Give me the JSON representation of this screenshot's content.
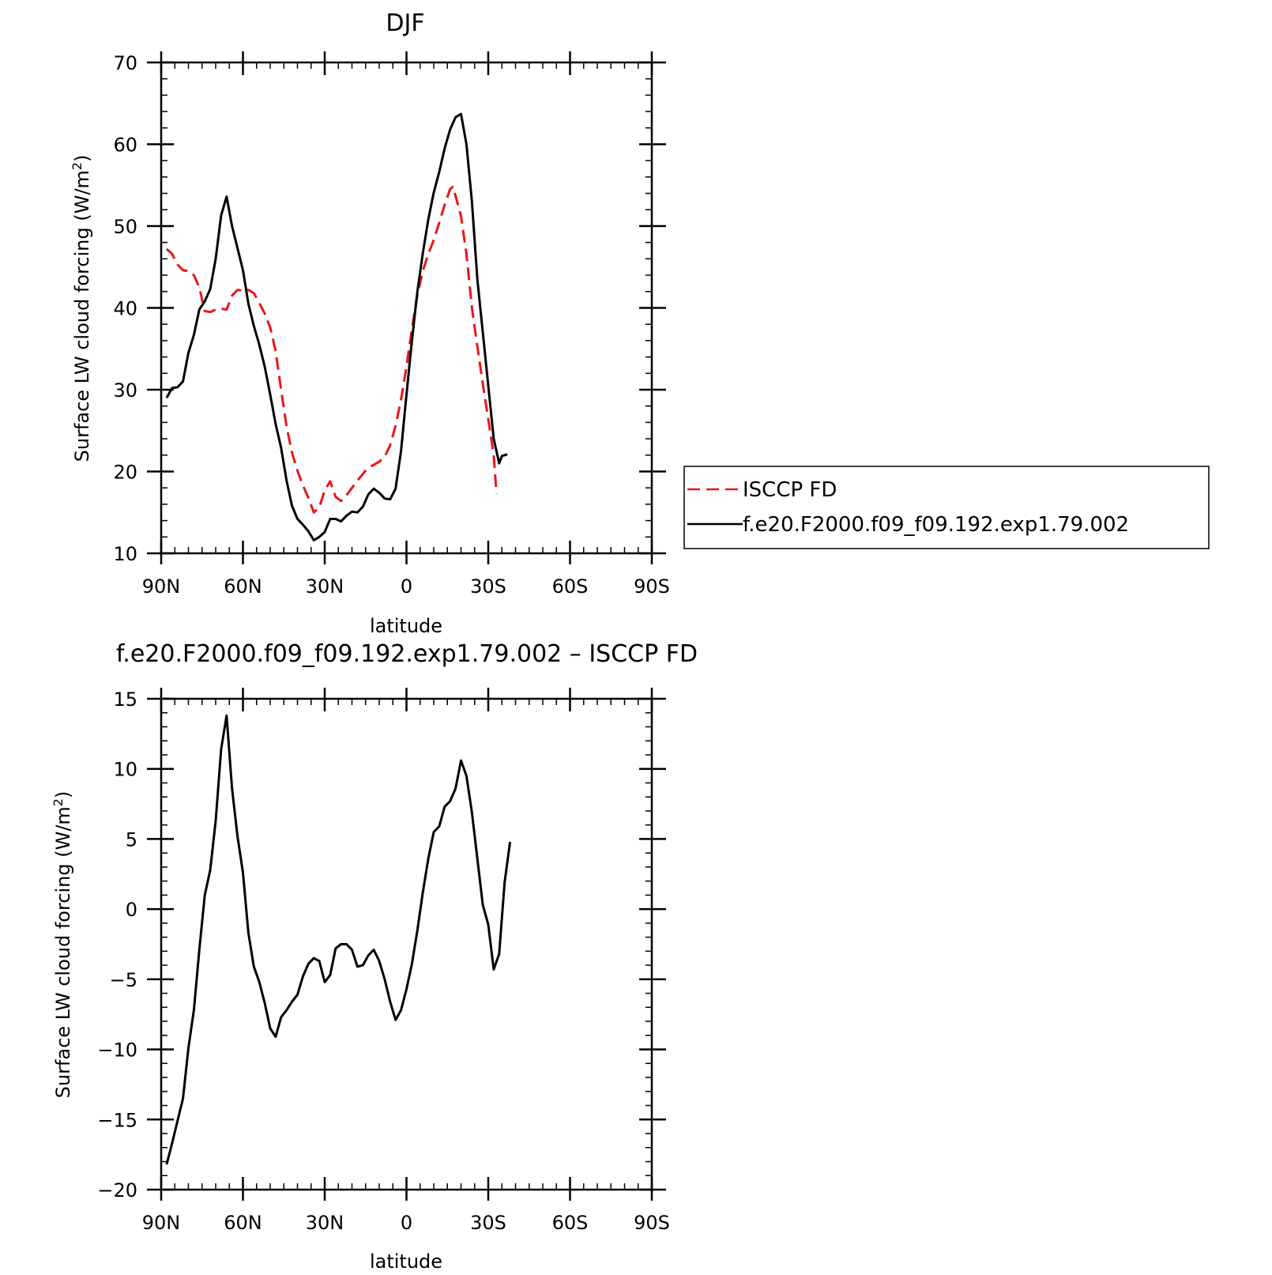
{
  "chart_data": [
    {
      "type": "line",
      "title": "DJF",
      "xlabel": "latitude",
      "ylabel": "Surface LW cloud forcing (W/m",
      "ylabel_sup": "2",
      "ylabel_close": ")",
      "xlim": [
        90,
        -90
      ],
      "ylim": [
        10,
        70
      ],
      "x_ticks": [
        {
          "value": 90,
          "label": "90N"
        },
        {
          "value": 60,
          "label": "60N"
        },
        {
          "value": 30,
          "label": "30N"
        },
        {
          "value": 0,
          "label": "0"
        },
        {
          "value": -30,
          "label": "30S"
        },
        {
          "value": -60,
          "label": "60S"
        },
        {
          "value": -90,
          "label": "90S"
        }
      ],
      "y_ticks": [
        {
          "value": 10,
          "label": "10"
        },
        {
          "value": 20,
          "label": "20"
        },
        {
          "value": 30,
          "label": "30"
        },
        {
          "value": 40,
          "label": "40"
        },
        {
          "value": 50,
          "label": "50"
        },
        {
          "value": 60,
          "label": "60"
        },
        {
          "value": 70,
          "label": "70"
        }
      ],
      "legend_position": "right",
      "series": [
        {
          "name": "ISCCP FD",
          "color": "#e8161b",
          "dash": "dashed",
          "points": [
            [
              88,
              47.2
            ],
            [
              86,
              46.6
            ],
            [
              84,
              45.3
            ],
            [
              82,
              44.6
            ],
            [
              80,
              44.5
            ],
            [
              78,
              44.0
            ],
            [
              76,
              42.5
            ],
            [
              74,
              39.6
            ],
            [
              72,
              39.5
            ],
            [
              70,
              39.8
            ],
            [
              68,
              39.9
            ],
            [
              66,
              39.8
            ],
            [
              64,
              41.5
            ],
            [
              62,
              42.2
            ],
            [
              60,
              42.1
            ],
            [
              58,
              42.2
            ],
            [
              56,
              41.8
            ],
            [
              54,
              40.6
            ],
            [
              52,
              39.3
            ],
            [
              50,
              37.6
            ],
            [
              48,
              34.7
            ],
            [
              46,
              30.0
            ],
            [
              44,
              25.5
            ],
            [
              42,
              22.3
            ],
            [
              40,
              20.1
            ],
            [
              38,
              18.3
            ],
            [
              36,
              16.8
            ],
            [
              34,
              15.0
            ],
            [
              32,
              15.6
            ],
            [
              30,
              17.7
            ],
            [
              28,
              18.8
            ],
            [
              26,
              16.9
            ],
            [
              24,
              16.4
            ],
            [
              22,
              17.1
            ],
            [
              20,
              18.0
            ],
            [
              18,
              18.9
            ],
            [
              16,
              19.7
            ],
            [
              14,
              20.5
            ],
            [
              12,
              20.8
            ],
            [
              10,
              21.2
            ],
            [
              8,
              21.8
            ],
            [
              6,
              23.2
            ],
            [
              4,
              25.6
            ],
            [
              2,
              28.8
            ],
            [
              0,
              32.8
            ],
            [
              -2,
              37.5
            ],
            [
              -4,
              41.6
            ],
            [
              -6,
              44.5
            ],
            [
              -8,
              46.6
            ],
            [
              -10,
              48.3
            ],
            [
              -12,
              50.4
            ],
            [
              -14,
              52.6
            ],
            [
              -16,
              54.5
            ],
            [
              -17,
              54.8
            ],
            [
              -18,
              53.7
            ],
            [
              -20,
              51.2
            ],
            [
              -22,
              46.6
            ],
            [
              -24,
              40.0
            ],
            [
              -26,
              35.3
            ],
            [
              -28,
              30.7
            ],
            [
              -30,
              26.4
            ],
            [
              -32,
              22.0
            ],
            [
              -33,
              17.3
            ]
          ]
        },
        {
          "name": "f.e20.F2000.f09_f09.192.exp1.79.002",
          "color": "#000000",
          "dash": "solid",
          "points": [
            [
              88,
              29.0
            ],
            [
              86,
              30.2
            ],
            [
              84,
              30.3
            ],
            [
              82,
              31.0
            ],
            [
              80,
              34.5
            ],
            [
              78,
              36.7
            ],
            [
              76,
              39.8
            ],
            [
              74,
              40.8
            ],
            [
              72,
              42.3
            ],
            [
              70,
              46.0
            ],
            [
              68,
              51.3
            ],
            [
              66,
              53.6
            ],
            [
              64,
              50.0
            ],
            [
              62,
              47.3
            ],
            [
              60,
              44.6
            ],
            [
              58,
              40.5
            ],
            [
              56,
              37.8
            ],
            [
              54,
              35.5
            ],
            [
              52,
              32.8
            ],
            [
              50,
              29.4
            ],
            [
              48,
              25.8
            ],
            [
              46,
              22.9
            ],
            [
              44,
              18.9
            ],
            [
              42,
              15.8
            ],
            [
              40,
              14.2
            ],
            [
              38,
              13.5
            ],
            [
              36,
              12.7
            ],
            [
              34,
              11.6
            ],
            [
              32,
              12.0
            ],
            [
              30,
              12.6
            ],
            [
              28,
              14.2
            ],
            [
              26,
              14.2
            ],
            [
              24,
              13.9
            ],
            [
              22,
              14.6
            ],
            [
              20,
              15.1
            ],
            [
              18,
              15.0
            ],
            [
              16,
              15.7
            ],
            [
              14,
              17.2
            ],
            [
              12,
              17.9
            ],
            [
              10,
              17.4
            ],
            [
              8,
              16.7
            ],
            [
              6,
              16.6
            ],
            [
              4,
              17.9
            ],
            [
              2,
              22.5
            ],
            [
              0,
              29.4
            ],
            [
              -2,
              36.0
            ],
            [
              -4,
              42.0
            ],
            [
              -6,
              46.7
            ],
            [
              -8,
              50.8
            ],
            [
              -10,
              54.1
            ],
            [
              -12,
              56.6
            ],
            [
              -14,
              59.5
            ],
            [
              -16,
              61.8
            ],
            [
              -18,
              63.3
            ],
            [
              -20,
              63.7
            ],
            [
              -22,
              60.0
            ],
            [
              -24,
              53.0
            ],
            [
              -26,
              43.5
            ],
            [
              -28,
              37.0
            ],
            [
              -30,
              30.5
            ],
            [
              -32,
              24.0
            ],
            [
              -34,
              21.0
            ],
            [
              -35,
              21.9
            ],
            [
              -37,
              22.1
            ]
          ]
        }
      ]
    },
    {
      "type": "line",
      "title": "f.e20.F2000.f09_f09.192.exp1.79.002 – ISCCP FD",
      "xlabel": "latitude",
      "ylabel": "Surface LW cloud forcing (W/m",
      "ylabel_sup": "2",
      "ylabel_close": ")",
      "xlim": [
        90,
        -90
      ],
      "ylim": [
        -20,
        15
      ],
      "x_ticks": [
        {
          "value": 90,
          "label": "90N"
        },
        {
          "value": 60,
          "label": "60N"
        },
        {
          "value": 30,
          "label": "30N"
        },
        {
          "value": 0,
          "label": "0"
        },
        {
          "value": -30,
          "label": "30S"
        },
        {
          "value": -60,
          "label": "60S"
        },
        {
          "value": -90,
          "label": "90S"
        }
      ],
      "y_ticks": [
        {
          "value": -20,
          "label": "−20"
        },
        {
          "value": -15,
          "label": "−15"
        },
        {
          "value": -10,
          "label": "−10"
        },
        {
          "value": -5,
          "label": "−5"
        },
        {
          "value": 0,
          "label": "0"
        },
        {
          "value": 5,
          "label": "5"
        },
        {
          "value": 10,
          "label": "10"
        },
        {
          "value": 15,
          "label": "15"
        }
      ],
      "series": [
        {
          "color": "#000000",
          "dash": "solid",
          "points": [
            [
              88,
              -18.2
            ],
            [
              86,
              -16.7
            ],
            [
              84,
              -15.1
            ],
            [
              82,
              -13.5
            ],
            [
              80,
              -9.9
            ],
            [
              78,
              -7.2
            ],
            [
              76,
              -2.9
            ],
            [
              74,
              1.0
            ],
            [
              72,
              2.8
            ],
            [
              70,
              6.3
            ],
            [
              68,
              11.4
            ],
            [
              66,
              13.8
            ],
            [
              64,
              8.6
            ],
            [
              62,
              5.2
            ],
            [
              60,
              2.6
            ],
            [
              58,
              -1.7
            ],
            [
              56,
              -4.1
            ],
            [
              54,
              -5.2
            ],
            [
              52,
              -6.7
            ],
            [
              50,
              -8.5
            ],
            [
              48,
              -9.1
            ],
            [
              46,
              -7.7
            ],
            [
              44,
              -7.2
            ],
            [
              42,
              -6.6
            ],
            [
              40,
              -6.1
            ],
            [
              38,
              -4.8
            ],
            [
              36,
              -3.9
            ],
            [
              34,
              -3.5
            ],
            [
              32,
              -3.7
            ],
            [
              30,
              -5.2
            ],
            [
              28,
              -4.7
            ],
            [
              26,
              -2.8
            ],
            [
              24,
              -2.5
            ],
            [
              22,
              -2.5
            ],
            [
              20,
              -2.9
            ],
            [
              18,
              -4.1
            ],
            [
              16,
              -4.0
            ],
            [
              14,
              -3.3
            ],
            [
              12,
              -2.9
            ],
            [
              10,
              -3.7
            ],
            [
              8,
              -5.0
            ],
            [
              6,
              -6.6
            ],
            [
              4,
              -7.9
            ],
            [
              2,
              -7.2
            ],
            [
              0,
              -5.7
            ],
            [
              -2,
              -3.9
            ],
            [
              -4,
              -1.5
            ],
            [
              -6,
              1.2
            ],
            [
              -8,
              3.6
            ],
            [
              -10,
              5.5
            ],
            [
              -12,
              5.9
            ],
            [
              -14,
              7.3
            ],
            [
              -16,
              7.7
            ],
            [
              -18,
              8.6
            ],
            [
              -20,
              10.6
            ],
            [
              -22,
              9.5
            ],
            [
              -24,
              6.9
            ],
            [
              -26,
              3.6
            ],
            [
              -28,
              0.3
            ],
            [
              -30,
              -1.1
            ],
            [
              -32,
              -4.3
            ],
            [
              -34,
              -3.2
            ],
            [
              -36,
              1.9
            ],
            [
              -38,
              4.8
            ]
          ]
        }
      ]
    }
  ]
}
